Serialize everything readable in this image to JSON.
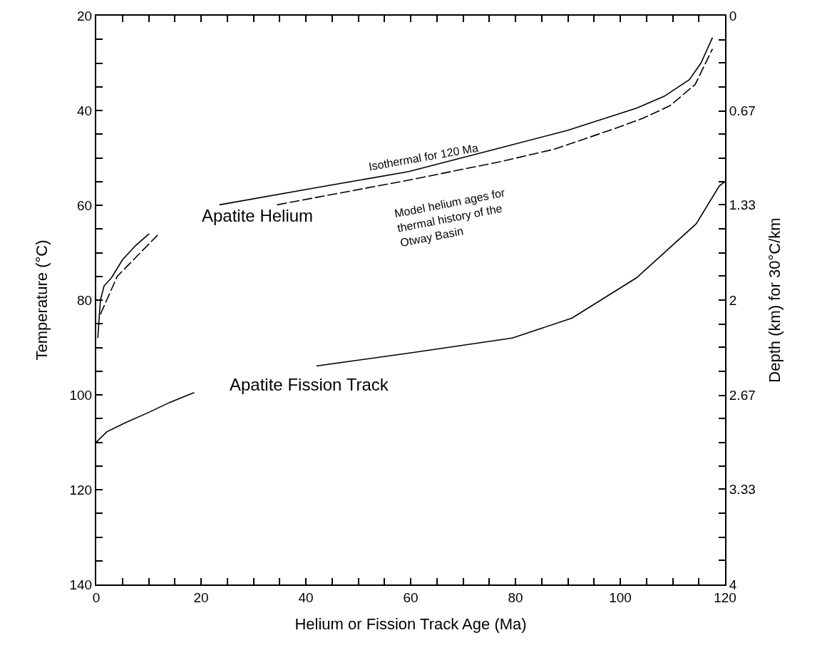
{
  "chart_data": {
    "type": "line",
    "xlabel": "Helium or Fission Track Age (Ma)",
    "ylabel": "Temperature (°C)",
    "y2label": "Depth (km) for 30°C/km",
    "xlim": [
      0,
      120
    ],
    "ylim": [
      140,
      20
    ],
    "y2lim": [
      4,
      0
    ],
    "xticks": [
      0,
      {
        "value": 5,
        "label": null
      },
      {
        "value": 10,
        "label": null
      },
      {
        "value": 15,
        "label": null
      },
      20,
      {
        "value": 25,
        "label": null
      },
      {
        "value": 30,
        "label": null
      },
      {
        "value": 35,
        "label": null
      },
      40,
      {
        "value": 45,
        "label": null
      },
      {
        "value": 50,
        "label": null
      },
      {
        "value": 55,
        "label": null
      },
      60,
      {
        "value": 65,
        "label": null
      },
      {
        "value": 70,
        "label": null
      },
      {
        "value": 75,
        "label": null
      },
      80,
      {
        "value": 85,
        "label": null
      },
      {
        "value": 90,
        "label": null
      },
      {
        "value": 95,
        "label": null
      },
      100,
      {
        "value": 105,
        "label": null
      },
      {
        "value": 110,
        "label": null
      },
      {
        "value": 115,
        "label": null
      },
      120
    ],
    "yticks": [
      20,
      {
        "value": 25,
        "label": null
      },
      {
        "value": 30,
        "label": null
      },
      {
        "value": 35,
        "label": null
      },
      40,
      {
        "value": 45,
        "label": null
      },
      {
        "value": 50,
        "label": null
      },
      {
        "value": 55,
        "label": null
      },
      60,
      {
        "value": 65,
        "label": null
      },
      {
        "value": 70,
        "label": null
      },
      {
        "value": 75,
        "label": null
      },
      80,
      {
        "value": 85,
        "label": null
      },
      {
        "value": 90,
        "label": null
      },
      {
        "value": 95,
        "label": null
      },
      100,
      {
        "value": 105,
        "label": null
      },
      {
        "value": 110,
        "label": null
      },
      {
        "value": 115,
        "label": null
      },
      120,
      {
        "value": 125,
        "label": null
      },
      {
        "value": 130,
        "label": null
      },
      {
        "value": 135,
        "label": null
      },
      140
    ],
    "y2ticks": [
      0,
      {
        "value": 0.17,
        "label": null
      },
      {
        "value": 0.33,
        "label": null
      },
      {
        "value": 0.5,
        "label": null
      },
      0.67,
      {
        "value": 0.83,
        "label": null
      },
      {
        "value": 1,
        "label": null
      },
      {
        "value": 1.17,
        "label": null
      },
      1.33,
      {
        "value": 1.5,
        "label": null
      },
      {
        "value": 1.67,
        "label": null
      },
      {
        "value": 1.83,
        "label": null
      },
      2,
      {
        "value": 2.17,
        "label": null
      },
      {
        "value": 2.33,
        "label": null
      },
      {
        "value": 2.5,
        "label": null
      },
      2.67,
      {
        "value": 2.83,
        "label": null
      },
      {
        "value": 3,
        "label": null
      },
      {
        "value": 3.17,
        "label": null
      },
      3.33,
      {
        "value": 3.5,
        "label": null
      },
      {
        "value": 3.67,
        "label": null
      },
      {
        "value": 3.83,
        "label": null
      },
      4
    ],
    "grid": false,
    "series": [
      {
        "color": "#000000",
        "line_style": "solid",
        "x": [
          0.3,
          0.8,
          1.5,
          2.9,
          5,
          7.5,
          10.1,
          16,
          23.5,
          42.4,
          59.6,
          76.7,
          89.9,
          103.1,
          108.4,
          113.2,
          115.4,
          117.6
        ],
        "values": [
          88,
          80,
          77,
          75.3,
          71.5,
          68.5,
          66,
          null,
          59.9,
          56.2,
          52.9,
          48,
          44.2,
          39.5,
          37,
          33.5,
          30,
          24.6
        ]
      },
      {
        "color": "#000000",
        "line_style": "dashed",
        "x": [
          0.8,
          4,
          11.7,
          22,
          34.5,
          59.6,
          76.7,
          87.3,
          98.5,
          104.2,
          109.5,
          114.3,
          117.6
        ],
        "values": [
          83,
          75,
          66.3,
          null,
          59.9,
          54.7,
          50.9,
          48.2,
          44,
          41.7,
          39,
          34.5,
          27
        ]
      },
      {
        "color": "#000000",
        "line_style": "solid",
        "x": [
          0,
          2,
          5.5,
          10,
          14,
          18.7,
          30,
          42,
          59.6,
          79.4,
          90.8,
          103.1,
          114.5,
          118.9,
          120
        ],
        "values": [
          110,
          107.8,
          105.9,
          103.7,
          101.6,
          99.5,
          null,
          93.9,
          91.2,
          88,
          83.8,
          75.3,
          63.9,
          55.9,
          55
        ]
      }
    ],
    "annotations": [
      "Apatite Helium",
      "Apatite Fission Track",
      "Isothermal for 120 Ma",
      "Model helium ages for\nthermal history of the\nOtway Basin"
    ]
  }
}
